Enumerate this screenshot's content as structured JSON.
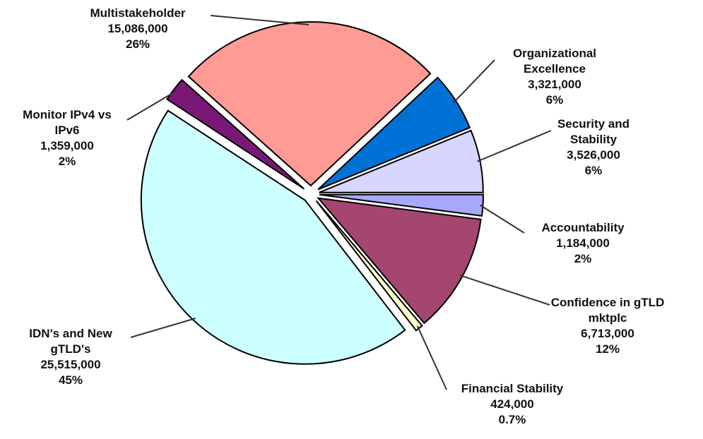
{
  "chart_data": {
    "type": "pie",
    "categories": [
      "Accountability",
      "Confidence in gTLD mktplc",
      "Financial Stability",
      "IDN's and New gTLD's",
      "Monitor IPv4 vs IPv6",
      "Multistakeholder",
      "Organizational Excellence",
      "Security and Stability"
    ],
    "values": [
      1184000,
      6713000,
      424000,
      25515000,
      1359000,
      15086000,
      3321000,
      3526000
    ],
    "value_labels": [
      "1,184,000",
      "6,713,000",
      "424,000",
      "25,515,000",
      "1,359,000",
      "15,086,000",
      "3,321,000",
      "3,526,000"
    ],
    "percentages": [
      2,
      12,
      0.7,
      45,
      2,
      26,
      6,
      6
    ],
    "percent_labels": [
      "2%",
      "12%",
      "0.7%",
      "45%",
      "2%",
      "26%",
      "6%",
      "6%"
    ],
    "colors": [
      "#a8a8ff",
      "#a4466f",
      "#ffffcc",
      "#ccffff",
      "#7a1878",
      "#ff9a94",
      "#0072d6",
      "#d6d6ff"
    ]
  }
}
